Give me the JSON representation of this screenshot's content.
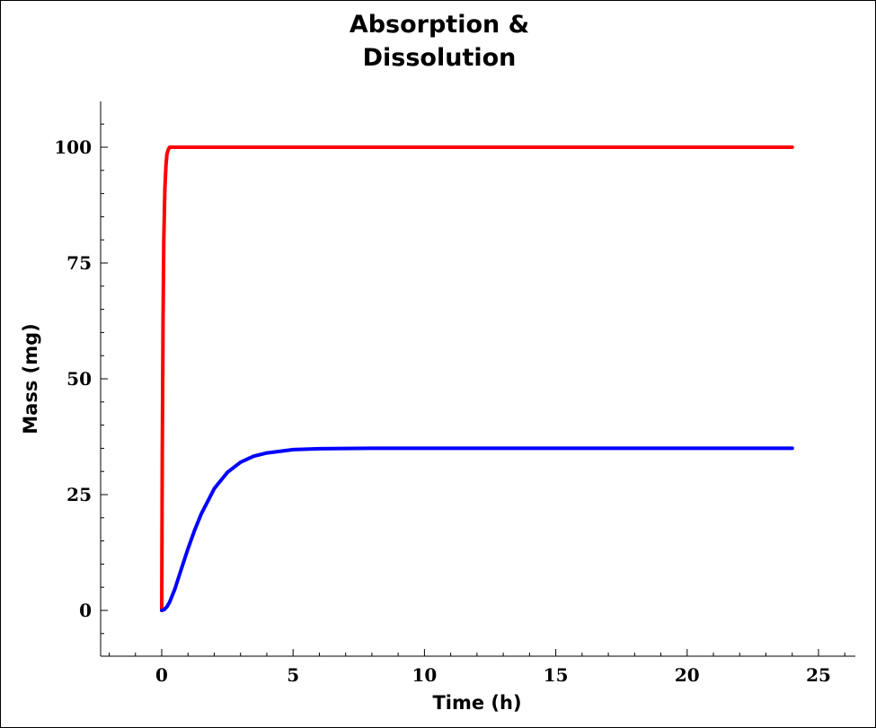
{
  "chart_data": {
    "type": "line",
    "title_lines": [
      "Absorption &",
      "Dissolution"
    ],
    "xlabel": "Time (h)",
    "ylabel": "Mass (mg)",
    "xlim": [
      -2.3,
      26
    ],
    "ylim": [
      -10,
      110
    ],
    "x_ticks": [
      0,
      5,
      10,
      15,
      20,
      25
    ],
    "y_ticks": [
      0,
      25,
      50,
      75,
      100
    ],
    "grid": false,
    "legend": "none",
    "series": [
      {
        "color": "#ff0000",
        "x": [
          0,
          0.02,
          0.05,
          0.08,
          0.12,
          0.16,
          0.2,
          0.25,
          0.3,
          0.4,
          0.6,
          1,
          2,
          5,
          10,
          15,
          20,
          24
        ],
        "y": [
          0,
          33,
          63,
          80,
          91,
          96,
          98.5,
          99.5,
          100,
          100,
          100,
          100,
          100,
          100,
          100,
          100,
          100,
          100
        ]
      },
      {
        "color": "#0000ff",
        "x": [
          0,
          0.1,
          0.2,
          0.3,
          0.5,
          0.75,
          1,
          1.25,
          1.5,
          2,
          2.5,
          3,
          3.5,
          4,
          5,
          6,
          8,
          10,
          15,
          20,
          24
        ],
        "y": [
          0,
          0.2,
          0.8,
          1.8,
          4.6,
          9.0,
          13.3,
          17.3,
          20.8,
          26.3,
          29.8,
          32.0,
          33.3,
          34.0,
          34.7,
          34.9,
          35,
          35,
          35,
          35,
          35
        ]
      }
    ]
  }
}
